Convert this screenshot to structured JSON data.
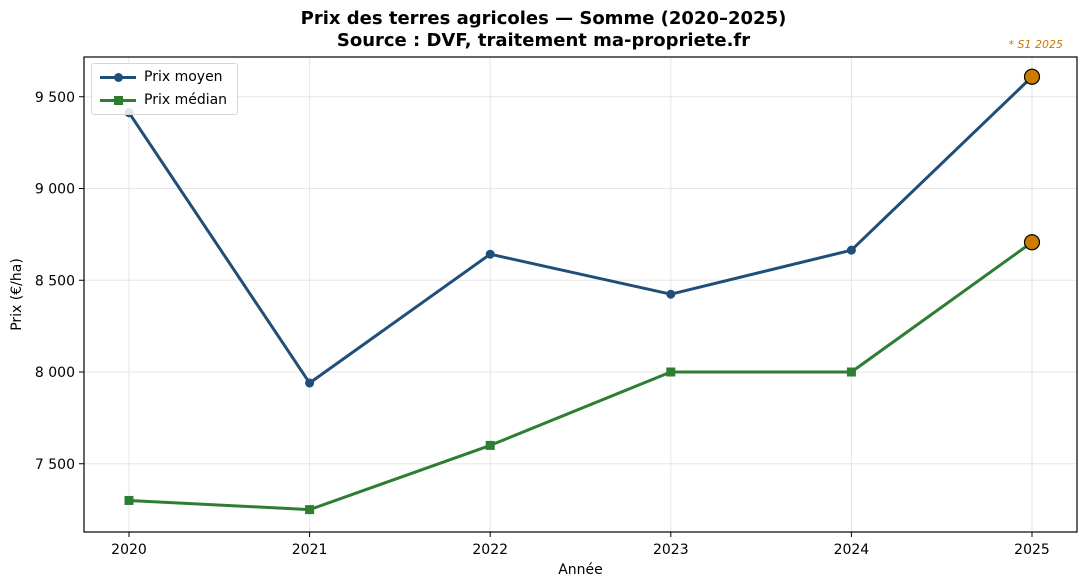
{
  "header": {
    "title_line1": "Prix des terres agricoles — Somme (2020–2025)",
    "title_line2": "Source : DVF, traitement ma-propriete.fr",
    "note": "* S1 2025"
  },
  "colors": {
    "moyen": "#1f4e79",
    "median": "#2e7d32",
    "highlight": "#cc7a00",
    "note": "#c57a06",
    "grid": "#e6e6e6"
  },
  "chart_data": {
    "type": "line",
    "title": "Prix des terres agricoles — Somme (2020–2025)\nSource : DVF, traitement ma-propriete.fr",
    "xlabel": "Année",
    "ylabel": "Prix (€/ha)",
    "x": [
      "2020",
      "2021",
      "2022",
      "2023",
      "2024",
      "2025"
    ],
    "series": [
      {
        "name": "Prix moyen",
        "marker": "circle",
        "values": [
          9413,
          7940,
          8642,
          8424,
          8664,
          9609
        ]
      },
      {
        "name": "Prix médian",
        "marker": "square",
        "values": [
          7300,
          7250,
          7600,
          8000,
          8000,
          8707
        ]
      }
    ],
    "yticks": [
      7500,
      8000,
      8500,
      9000,
      9500
    ],
    "ytick_labels": [
      "7 500",
      "8 000",
      "8 500",
      "9 000",
      "9 500"
    ],
    "ylim": [
      7200,
      9800
    ],
    "grid": true,
    "legend_position": "upper left",
    "annotations": [
      {
        "text": "* S1 2025",
        "note": "2025 points highlighted (first half only)"
      }
    ]
  },
  "legend": {
    "items": [
      {
        "label": "Prix moyen"
      },
      {
        "label": "Prix médian"
      }
    ]
  }
}
